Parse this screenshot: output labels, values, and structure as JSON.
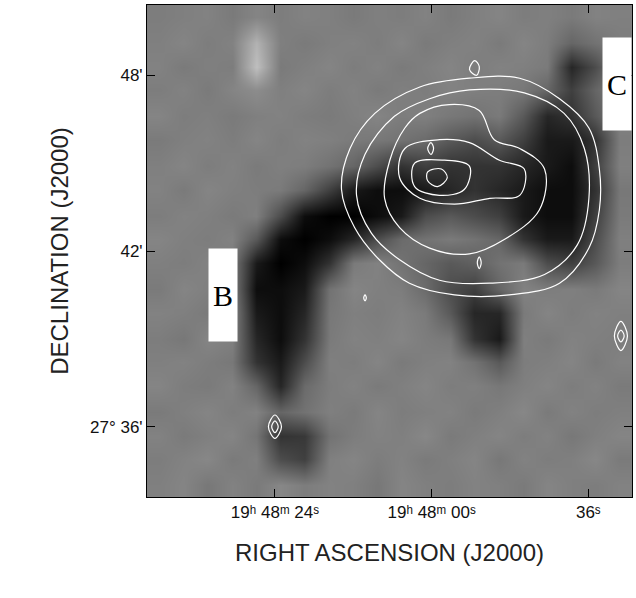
{
  "chart_data": {
    "type": "heatmap",
    "x_label": "RIGHT ASCENSION (J2000)",
    "y_label": "DECLINATION (J2000)",
    "xlim": [
      103.6,
      29.3
    ],
    "ylim": [
      33.6,
      50.4
    ],
    "xticks": [
      {
        "value": 84,
        "label": "19ʰ 48ᵐ 24ˢ"
      },
      {
        "value": 60,
        "label": "19ʰ 48ᵐ 00ˢ"
      },
      {
        "value": 36,
        "label": "36ˢ"
      }
    ],
    "yticks": [
      {
        "value": 36,
        "label": "27° 36'"
      },
      {
        "value": 42,
        "label": "42'"
      },
      {
        "value": 48,
        "label": "48'"
      }
    ],
    "grid": false,
    "heatmap": {
      "x": [
        101.7,
        98.0,
        94.3,
        90.6,
        86.9,
        83.2,
        79.5,
        75.7,
        72.0,
        68.3,
        64.6,
        60.9,
        57.2,
        53.5,
        49.7,
        46.0,
        42.3,
        38.6,
        34.9,
        31.2
      ],
      "y": [
        34.0,
        34.9,
        35.7,
        36.5,
        37.4,
        38.2,
        39.0,
        39.9,
        40.7,
        41.6,
        42.4,
        43.2,
        44.1,
        44.9,
        45.8,
        46.6,
        47.5,
        48.3,
        49.1,
        50.0
      ],
      "zlim": [
        0,
        100
      ],
      "colors": [
        "#000000",
        "#ffffff"
      ],
      "z": [
        [
          50,
          52,
          47,
          51,
          48,
          53,
          49,
          51,
          50,
          47,
          52,
          50,
          49,
          51,
          50,
          48,
          52,
          50,
          49,
          51
        ],
        [
          49,
          51,
          53,
          48,
          50,
          30,
          25,
          50,
          52,
          49,
          51,
          48,
          50,
          52,
          47,
          51,
          49,
          50,
          53,
          48
        ],
        [
          51,
          48,
          50,
          52,
          46,
          20,
          22,
          45,
          49,
          51,
          50,
          53,
          48,
          50,
          52,
          49,
          51,
          47,
          50,
          52
        ],
        [
          48,
          50,
          52,
          49,
          51,
          40,
          45,
          50,
          48,
          52,
          49,
          50,
          51,
          48,
          50,
          53,
          48,
          51,
          49,
          50
        ],
        [
          52,
          49,
          48,
          51,
          40,
          15,
          42,
          49,
          51,
          48,
          50,
          52,
          49,
          50,
          47,
          50,
          52,
          49,
          51,
          48
        ],
        [
          50,
          51,
          49,
          47,
          20,
          10,
          30,
          50,
          49,
          52,
          48,
          50,
          51,
          45,
          35,
          49,
          50,
          52,
          48,
          51
        ],
        [
          49,
          47,
          52,
          50,
          15,
          5,
          20,
          48,
          51,
          50,
          52,
          49,
          47,
          20,
          10,
          50,
          48,
          51,
          50,
          49
        ],
        [
          51,
          50,
          48,
          52,
          10,
          5,
          15,
          47,
          50,
          49,
          51,
          48,
          35,
          15,
          15,
          48,
          52,
          49,
          51,
          50
        ],
        [
          48,
          52,
          50,
          49,
          5,
          5,
          10,
          45,
          52,
          50,
          49,
          42,
          30,
          25,
          40,
          51,
          49,
          50,
          48,
          52
        ],
        [
          50,
          49,
          51,
          48,
          10,
          0,
          5,
          20,
          48,
          51,
          45,
          40,
          35,
          38,
          45,
          48,
          30,
          25,
          35,
          49
        ],
        [
          52,
          50,
          49,
          51,
          35,
          5,
          0,
          5,
          15,
          30,
          42,
          45,
          48,
          45,
          40,
          20,
          10,
          10,
          30,
          50
        ],
        [
          49,
          51,
          50,
          48,
          50,
          30,
          5,
          0,
          0,
          5,
          10,
          30,
          35,
          30,
          25,
          10,
          5,
          5,
          25,
          48
        ],
        [
          51,
          48,
          52,
          50,
          49,
          48,
          40,
          25,
          10,
          5,
          5,
          10,
          15,
          20,
          15,
          10,
          5,
          5,
          20,
          47
        ],
        [
          50,
          52,
          49,
          51,
          48,
          50,
          49,
          45,
          40,
          30,
          20,
          25,
          20,
          20,
          20,
          15,
          10,
          5,
          25,
          50
        ],
        [
          48,
          50,
          51,
          49,
          52,
          49,
          51,
          50,
          48,
          47,
          45,
          42,
          35,
          30,
          35,
          25,
          10,
          10,
          20,
          49
        ],
        [
          52,
          49,
          50,
          48,
          50,
          51,
          49,
          48,
          50,
          52,
          49,
          50,
          47,
          45,
          48,
          35,
          15,
          20,
          35,
          50
        ],
        [
          49,
          51,
          48,
          52,
          55,
          50,
          52,
          49,
          51,
          48,
          50,
          49,
          51,
          50,
          49,
          47,
          40,
          25,
          40,
          51
        ],
        [
          51,
          48,
          50,
          49,
          75,
          48,
          50,
          52,
          49,
          51,
          48,
          50,
          52,
          49,
          51,
          50,
          48,
          15,
          30,
          50
        ],
        [
          50,
          52,
          49,
          51,
          70,
          50,
          48,
          50,
          51,
          49,
          52,
          48,
          50,
          51,
          48,
          52,
          49,
          40,
          45,
          49
        ],
        [
          49,
          50,
          51,
          48,
          52,
          49,
          51,
          50,
          48,
          50,
          49,
          51,
          48,
          50,
          52,
          49,
          50,
          48,
          51,
          50
        ]
      ]
    },
    "contours": [
      {
        "color": "#ffffff",
        "x": [
          54.2,
          46.5,
          40.4,
          35.9,
          34.3,
          34.3,
          35.9,
          40.4,
          48.1,
          56.5,
          63.4,
          68.0,
          71.8,
          73.8,
          72.5,
          68.7,
          61.8,
          54.2
        ],
        "y": [
          47.9,
          47.9,
          47.2,
          46.2,
          44.8,
          43.4,
          42.1,
          40.9,
          40.5,
          40.5,
          40.9,
          41.7,
          42.8,
          44.1,
          45.5,
          46.7,
          47.6,
          47.9
        ]
      },
      {
        "color": "#ffffff",
        "x": [
          54.2,
          45.8,
          39.7,
          36.6,
          35.9,
          37.7,
          42.7,
          51.1,
          58.8,
          64.9,
          69.2,
          71.5,
          70.2,
          65.7,
          60.3,
          54.2
        ],
        "y": [
          47.5,
          47.4,
          46.7,
          45.5,
          43.8,
          42.2,
          41.2,
          40.9,
          41.0,
          41.7,
          42.6,
          43.9,
          45.3,
          46.6,
          47.2,
          47.5
        ]
      },
      {
        "color": "#ffffff",
        "x": [
          61.8,
          57.3,
          52.7,
          50.4,
          46.5,
          42.7,
          43.5,
          48.8,
          54.2,
          60.3,
          64.9,
          67.2,
          66.4,
          64.1,
          61.8
        ],
        "y": [
          46.7,
          47.0,
          46.8,
          45.8,
          45.5,
          44.8,
          43.4,
          42.4,
          41.9,
          42.1,
          42.8,
          43.8,
          45.1,
          46.2,
          46.7
        ]
      },
      {
        "color": "#ffffff",
        "x": [
          64.1,
          58.8,
          54.2,
          49.6,
          45.8,
          46.5,
          51.1,
          56.5,
          61.8,
          64.9,
          64.1
        ],
        "y": [
          45.5,
          45.8,
          45.7,
          45.1,
          44.8,
          43.9,
          43.8,
          43.6,
          43.8,
          44.5,
          45.5
        ]
      },
      {
        "color": "#ffffff",
        "x": [
          62.6,
          58.0,
          54.2,
          55.0,
          58.8,
          62.6,
          62.6
        ],
        "y": [
          45.0,
          45.1,
          44.9,
          44.1,
          43.9,
          44.2,
          45.0
        ]
      },
      {
        "color": "#ffffff",
        "x": [
          60.6,
          58.5,
          57.6,
          59.1,
          60.6,
          60.6
        ],
        "y": [
          44.7,
          44.8,
          44.5,
          44.2,
          44.4,
          44.7
        ]
      },
      {
        "color": "#ffffff",
        "x": [
          60.6,
          60.1,
          59.7,
          60.1,
          60.6
        ],
        "y": [
          45.5,
          45.7,
          45.5,
          45.3,
          45.5
        ]
      },
      {
        "color": "#ffffff",
        "x": [
          54.2,
          53.4,
          52.7,
          53.1,
          54.2
        ],
        "y": [
          48.2,
          48.5,
          48.3,
          48.0,
          48.2
        ]
      },
      {
        "color": "#ffffff",
        "x": [
          53.0,
          52.7,
          52.4,
          52.7,
          53.0
        ],
        "y": [
          41.6,
          41.8,
          41.6,
          41.4,
          41.6
        ]
      },
      {
        "color": "#ffffff",
        "x": [
          70.4,
          70.2,
          70.0,
          70.2,
          70.4
        ],
        "y": [
          40.4,
          40.5,
          40.4,
          40.3,
          40.4
        ]
      },
      {
        "color": "#ffffff",
        "x": [
          85.0,
          84.0,
          83.0,
          84.0,
          85.0
        ],
        "y": [
          36.0,
          36.4,
          36.0,
          35.6,
          36.0
        ]
      },
      {
        "color": "#ffffff",
        "x": [
          84.5,
          84.0,
          83.5,
          84.0,
          84.5
        ],
        "y": [
          36.0,
          36.2,
          36.0,
          35.8,
          36.0
        ]
      },
      {
        "color": "#ffffff",
        "x": [
          32.0,
          31.0,
          30.0,
          31.0,
          32.0
        ],
        "y": [
          39.1,
          39.6,
          39.1,
          38.6,
          39.1
        ]
      },
      {
        "color": "#ffffff",
        "x": [
          31.5,
          31.0,
          30.5,
          31.0,
          31.5
        ],
        "y": [
          39.1,
          39.3,
          39.1,
          38.9,
          39.1
        ]
      }
    ],
    "annotations": [
      {
        "text": "B",
        "x": 92.0,
        "y": 40.5
      },
      {
        "text": "C",
        "x": 31.6,
        "y": 47.7
      }
    ]
  }
}
